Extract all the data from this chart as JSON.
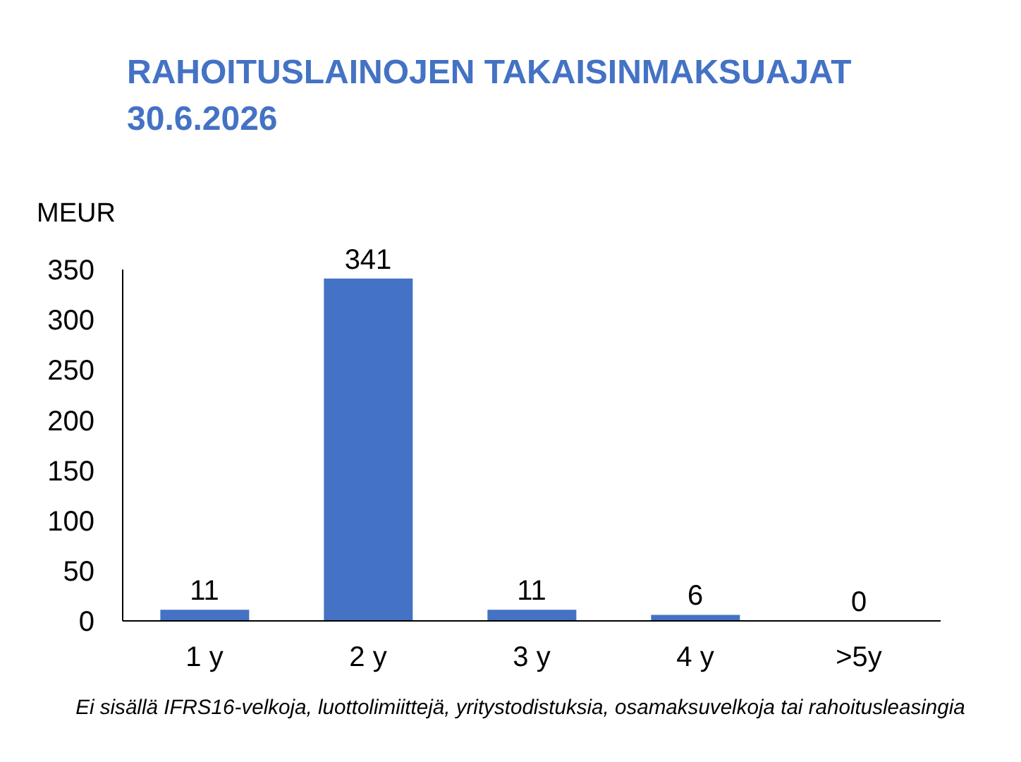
{
  "chart_data": {
    "type": "bar",
    "title": "RAHOITUSLAINOJEN TAKAISINMAKSUAJAT\n30.6.2026",
    "ylabel": "MEUR",
    "annotations": [
      "Ei sisällä IFRS16-velkoja, luottolimiittejä, yritystodistuksia, osamaksuvelkoja tai rahoitusleasingia"
    ],
    "categories": [
      "1 y",
      "2 y",
      "3 y",
      "4 y",
      ">5y"
    ],
    "values": [
      11,
      341,
      11,
      6,
      0
    ],
    "color": "#4472c4",
    "ylim": [
      0,
      350
    ],
    "yticks": [
      0,
      50,
      100,
      150,
      200,
      250,
      300,
      350
    ],
    "data_labels": true
  }
}
